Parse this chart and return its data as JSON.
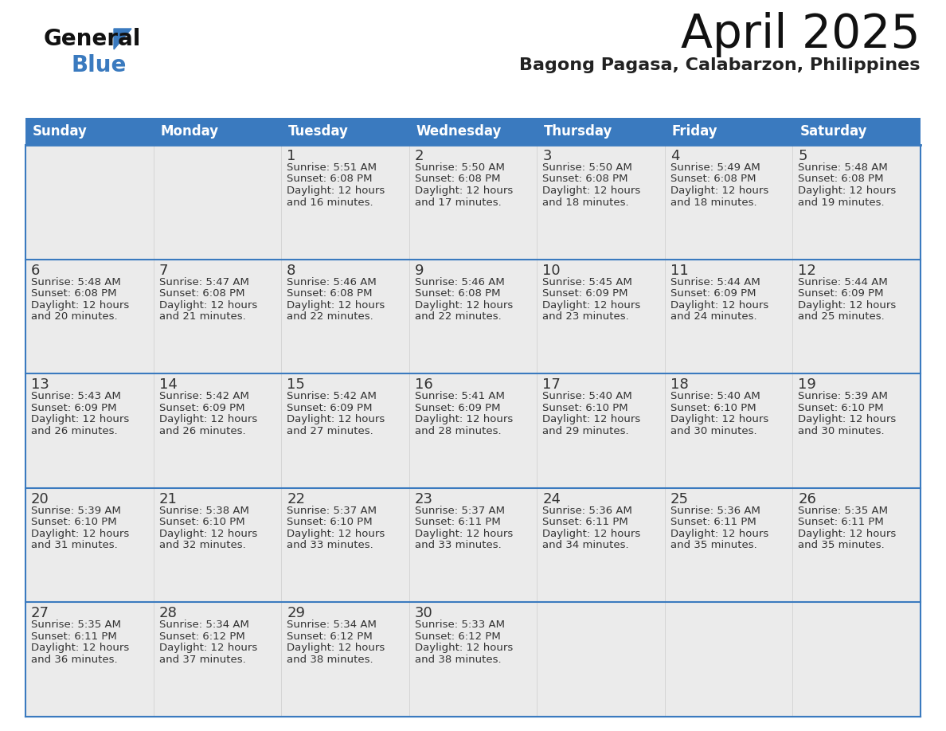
{
  "title": "April 2025",
  "subtitle": "Bagong Pagasa, Calabarzon, Philippines",
  "header_color": "#3a7abf",
  "header_text_color": "#ffffff",
  "cell_bg_color": "#ebebeb",
  "empty_cell_bg_color": "#ebebeb",
  "day_number_color": "#333333",
  "text_color": "#444444",
  "info_text_color": "#333333",
  "border_color": "#3a7abf",
  "grid_line_color": "#3a7abf",
  "days_of_week": [
    "Sunday",
    "Monday",
    "Tuesday",
    "Wednesday",
    "Thursday",
    "Friday",
    "Saturday"
  ],
  "weeks": [
    [
      {
        "day": null
      },
      {
        "day": null
      },
      {
        "day": 1,
        "sunrise": "5:51 AM",
        "sunset": "6:08 PM",
        "daylight_h": "12 hours",
        "daylight_m": "16 minutes"
      },
      {
        "day": 2,
        "sunrise": "5:50 AM",
        "sunset": "6:08 PM",
        "daylight_h": "12 hours",
        "daylight_m": "17 minutes"
      },
      {
        "day": 3,
        "sunrise": "5:50 AM",
        "sunset": "6:08 PM",
        "daylight_h": "12 hours",
        "daylight_m": "18 minutes"
      },
      {
        "day": 4,
        "sunrise": "5:49 AM",
        "sunset": "6:08 PM",
        "daylight_h": "12 hours",
        "daylight_m": "18 minutes"
      },
      {
        "day": 5,
        "sunrise": "5:48 AM",
        "sunset": "6:08 PM",
        "daylight_h": "12 hours",
        "daylight_m": "19 minutes"
      }
    ],
    [
      {
        "day": 6,
        "sunrise": "5:48 AM",
        "sunset": "6:08 PM",
        "daylight_h": "12 hours",
        "daylight_m": "20 minutes"
      },
      {
        "day": 7,
        "sunrise": "5:47 AM",
        "sunset": "6:08 PM",
        "daylight_h": "12 hours",
        "daylight_m": "21 minutes"
      },
      {
        "day": 8,
        "sunrise": "5:46 AM",
        "sunset": "6:08 PM",
        "daylight_h": "12 hours",
        "daylight_m": "22 minutes"
      },
      {
        "day": 9,
        "sunrise": "5:46 AM",
        "sunset": "6:08 PM",
        "daylight_h": "12 hours",
        "daylight_m": "22 minutes"
      },
      {
        "day": 10,
        "sunrise": "5:45 AM",
        "sunset": "6:09 PM",
        "daylight_h": "12 hours",
        "daylight_m": "23 minutes"
      },
      {
        "day": 11,
        "sunrise": "5:44 AM",
        "sunset": "6:09 PM",
        "daylight_h": "12 hours",
        "daylight_m": "24 minutes"
      },
      {
        "day": 12,
        "sunrise": "5:44 AM",
        "sunset": "6:09 PM",
        "daylight_h": "12 hours",
        "daylight_m": "25 minutes"
      }
    ],
    [
      {
        "day": 13,
        "sunrise": "5:43 AM",
        "sunset": "6:09 PM",
        "daylight_h": "12 hours",
        "daylight_m": "26 minutes"
      },
      {
        "day": 14,
        "sunrise": "5:42 AM",
        "sunset": "6:09 PM",
        "daylight_h": "12 hours",
        "daylight_m": "26 minutes"
      },
      {
        "day": 15,
        "sunrise": "5:42 AM",
        "sunset": "6:09 PM",
        "daylight_h": "12 hours",
        "daylight_m": "27 minutes"
      },
      {
        "day": 16,
        "sunrise": "5:41 AM",
        "sunset": "6:09 PM",
        "daylight_h": "12 hours",
        "daylight_m": "28 minutes"
      },
      {
        "day": 17,
        "sunrise": "5:40 AM",
        "sunset": "6:10 PM",
        "daylight_h": "12 hours",
        "daylight_m": "29 minutes"
      },
      {
        "day": 18,
        "sunrise": "5:40 AM",
        "sunset": "6:10 PM",
        "daylight_h": "12 hours",
        "daylight_m": "30 minutes"
      },
      {
        "day": 19,
        "sunrise": "5:39 AM",
        "sunset": "6:10 PM",
        "daylight_h": "12 hours",
        "daylight_m": "30 minutes"
      }
    ],
    [
      {
        "day": 20,
        "sunrise": "5:39 AM",
        "sunset": "6:10 PM",
        "daylight_h": "12 hours",
        "daylight_m": "31 minutes"
      },
      {
        "day": 21,
        "sunrise": "5:38 AM",
        "sunset": "6:10 PM",
        "daylight_h": "12 hours",
        "daylight_m": "32 minutes"
      },
      {
        "day": 22,
        "sunrise": "5:37 AM",
        "sunset": "6:10 PM",
        "daylight_h": "12 hours",
        "daylight_m": "33 minutes"
      },
      {
        "day": 23,
        "sunrise": "5:37 AM",
        "sunset": "6:11 PM",
        "daylight_h": "12 hours",
        "daylight_m": "33 minutes"
      },
      {
        "day": 24,
        "sunrise": "5:36 AM",
        "sunset": "6:11 PM",
        "daylight_h": "12 hours",
        "daylight_m": "34 minutes"
      },
      {
        "day": 25,
        "sunrise": "5:36 AM",
        "sunset": "6:11 PM",
        "daylight_h": "12 hours",
        "daylight_m": "35 minutes"
      },
      {
        "day": 26,
        "sunrise": "5:35 AM",
        "sunset": "6:11 PM",
        "daylight_h": "12 hours",
        "daylight_m": "35 minutes"
      }
    ],
    [
      {
        "day": 27,
        "sunrise": "5:35 AM",
        "sunset": "6:11 PM",
        "daylight_h": "12 hours",
        "daylight_m": "36 minutes"
      },
      {
        "day": 28,
        "sunrise": "5:34 AM",
        "sunset": "6:12 PM",
        "daylight_h": "12 hours",
        "daylight_m": "37 minutes"
      },
      {
        "day": 29,
        "sunrise": "5:34 AM",
        "sunset": "6:12 PM",
        "daylight_h": "12 hours",
        "daylight_m": "38 minutes"
      },
      {
        "day": 30,
        "sunrise": "5:33 AM",
        "sunset": "6:12 PM",
        "daylight_h": "12 hours",
        "daylight_m": "38 minutes"
      },
      {
        "day": null
      },
      {
        "day": null
      },
      {
        "day": null
      }
    ]
  ],
  "logo_text_general": "General",
  "logo_text_blue": "Blue",
  "logo_color_general": "#111111",
  "logo_color_blue": "#3a7abf",
  "logo_triangle_color": "#3a7abf",
  "title_fontsize": 42,
  "subtitle_fontsize": 16,
  "dow_fontsize": 12,
  "day_num_fontsize": 13,
  "info_fontsize": 9.5
}
